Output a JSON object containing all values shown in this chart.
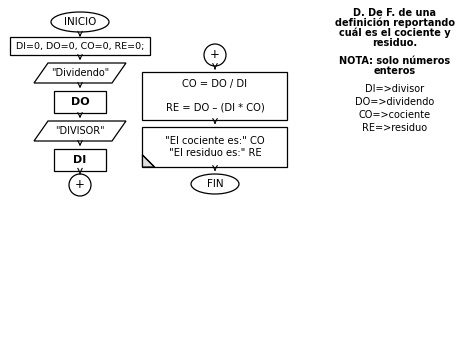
{
  "bg_color": "#ffffff",
  "text_color": "#000000",
  "box_edge_color": "#000000",
  "box_fill": "#ffffff",
  "legend_lines": [
    "DI=>divisor",
    "DO=>dividendo",
    "CO=>cociente",
    "RE=>residuo"
  ],
  "left_flow": {
    "inicio_text": "INICIO",
    "init_text": "DI=0, DO=0, CO=0, RE=0;",
    "dividendo_text": "\"Dividendo\"",
    "do_text": "DO",
    "divisor_text": "\"DIVISOR\"",
    "di_text": "DI",
    "plus_text": "+"
  },
  "right_flow": {
    "plus_text": "+",
    "calc_line1": "CO = DO / DI",
    "calc_line2": "RE = DO – (DI * CO)",
    "out_line1": "\"El cociente es:\" CO",
    "out_line2": "\"El residuo es:\" RE",
    "fin_text": "FIN"
  },
  "right_text": {
    "line1": "D. De F. de una",
    "line2": "definición reportando",
    "line3": "cuál es el cociente y",
    "line4": "residuo.",
    "nota1": "NOTA: solo números",
    "nota2": "enteros",
    "leg1": "DI=>divisor",
    "leg2": "DO=>dividendo",
    "leg3": "CO=>cociente",
    "leg4": "RE=>residuo"
  },
  "lw": 0.9,
  "fs": 7.0,
  "fs_bold": 7.5,
  "fs_text": 7.2
}
